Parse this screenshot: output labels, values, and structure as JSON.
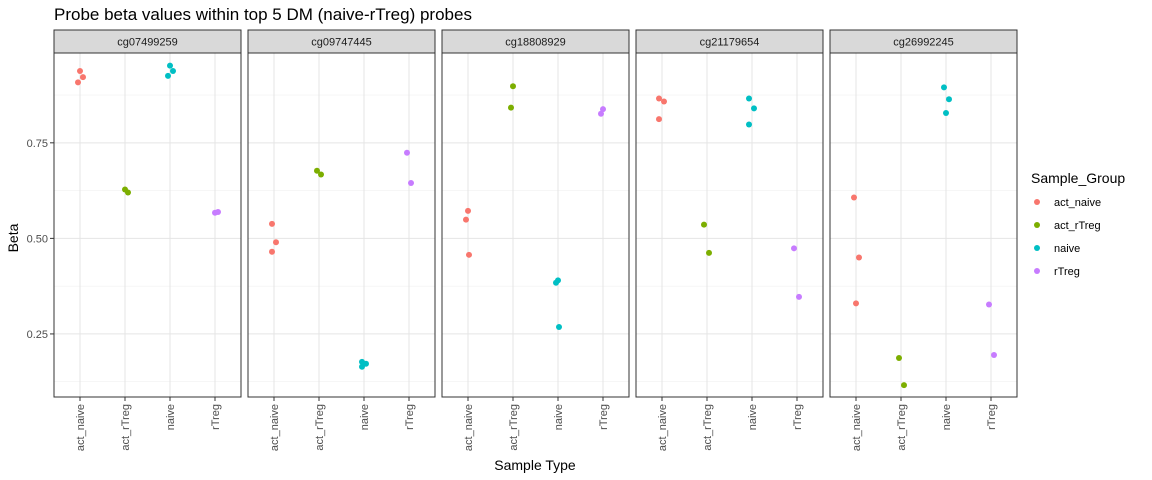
{
  "chart_data": {
    "type": "scatter",
    "title": "Probe beta values within top 5 DM (naive-rTreg) probes",
    "xlabel": "Sample Type",
    "ylabel": "Beta",
    "ylim": [
      0.085,
      0.985
    ],
    "yticks": [
      0.25,
      0.5,
      0.75
    ],
    "ytick_labels": [
      "0.25",
      "0.50",
      "0.75"
    ],
    "grid": true,
    "facet_by": "probe",
    "categories": [
      "act_naive",
      "act_rTreg",
      "naive",
      "rTreg"
    ],
    "legend": {
      "title": "Sample_Group",
      "position": "right",
      "entries": [
        "act_naive",
        "act_rTreg",
        "naive",
        "rTreg"
      ]
    },
    "colors": {
      "act_naive": "#F8766D",
      "act_rTreg": "#7CAE00",
      "naive": "#00BFC4",
      "rTreg": "#C77CFF"
    },
    "panels": [
      {
        "probe": "cg07499259",
        "series": [
          {
            "name": "act_naive",
            "values": [
              0.938,
              0.922,
              0.908
            ]
          },
          {
            "name": "act_rTreg",
            "values": [
              0.628,
              0.62
            ]
          },
          {
            "name": "naive",
            "values": [
              0.952,
              0.938,
              0.925
            ]
          },
          {
            "name": "rTreg",
            "values": [
              0.567,
              0.569
            ]
          }
        ]
      },
      {
        "probe": "cg09747445",
        "series": [
          {
            "name": "act_naive",
            "values": [
              0.538,
              0.49,
              0.465
            ]
          },
          {
            "name": "act_rTreg",
            "values": [
              0.677,
              0.667
            ]
          },
          {
            "name": "naive",
            "values": [
              0.177,
              0.172,
              0.164
            ]
          },
          {
            "name": "rTreg",
            "values": [
              0.724,
              0.645
            ]
          }
        ]
      },
      {
        "probe": "cg18808929",
        "series": [
          {
            "name": "act_naive",
            "values": [
              0.572,
              0.549,
              0.457
            ]
          },
          {
            "name": "act_rTreg",
            "values": [
              0.898,
              0.842
            ]
          },
          {
            "name": "naive",
            "values": [
              0.39,
              0.384,
              0.268
            ]
          },
          {
            "name": "rTreg",
            "values": [
              0.838,
              0.826
            ]
          }
        ]
      },
      {
        "probe": "cg21179654",
        "series": [
          {
            "name": "act_naive",
            "values": [
              0.866,
              0.858,
              0.812
            ]
          },
          {
            "name": "act_rTreg",
            "values": [
              0.536,
              0.462
            ]
          },
          {
            "name": "naive",
            "values": [
              0.866,
              0.84,
              0.798
            ]
          },
          {
            "name": "rTreg",
            "values": [
              0.474,
              0.347
            ]
          }
        ]
      },
      {
        "probe": "cg26992245",
        "series": [
          {
            "name": "act_naive",
            "values": [
              0.607,
              0.45,
              0.33
            ]
          },
          {
            "name": "act_rTreg",
            "values": [
              0.187,
              0.116
            ]
          },
          {
            "name": "naive",
            "values": [
              0.895,
              0.864,
              0.828
            ]
          },
          {
            "name": "rTreg",
            "values": [
              0.327,
              0.195
            ]
          }
        ]
      }
    ]
  }
}
